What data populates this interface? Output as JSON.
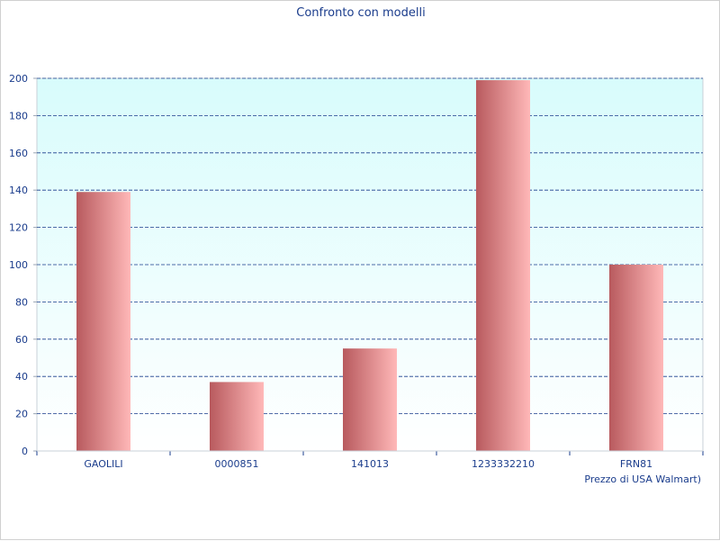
{
  "chart_data": {
    "type": "bar",
    "title": "Confronto con modelli",
    "xlabel": "Prezzo di USA Walmart)",
    "ylabel": "",
    "categories": [
      "GAOLILI",
      "0000851",
      "141013",
      "1233332210",
      "FRN81"
    ],
    "values": [
      139,
      37,
      55,
      199,
      100
    ],
    "ylim": [
      0,
      200
    ],
    "yticks": [
      "0",
      "20",
      "40",
      "60",
      "80",
      "100",
      "120",
      "140",
      "160",
      "180",
      "200"
    ],
    "grid": true,
    "legend": "none",
    "colors": {
      "bar_dark": "#b85a5e",
      "bar_light": "#ffb8b8",
      "plot_bg_top": "#d8fcfc",
      "plot_bg_bottom": "#ffffff",
      "grid": "#1a3c8c",
      "text": "#1a3c8c"
    }
  }
}
